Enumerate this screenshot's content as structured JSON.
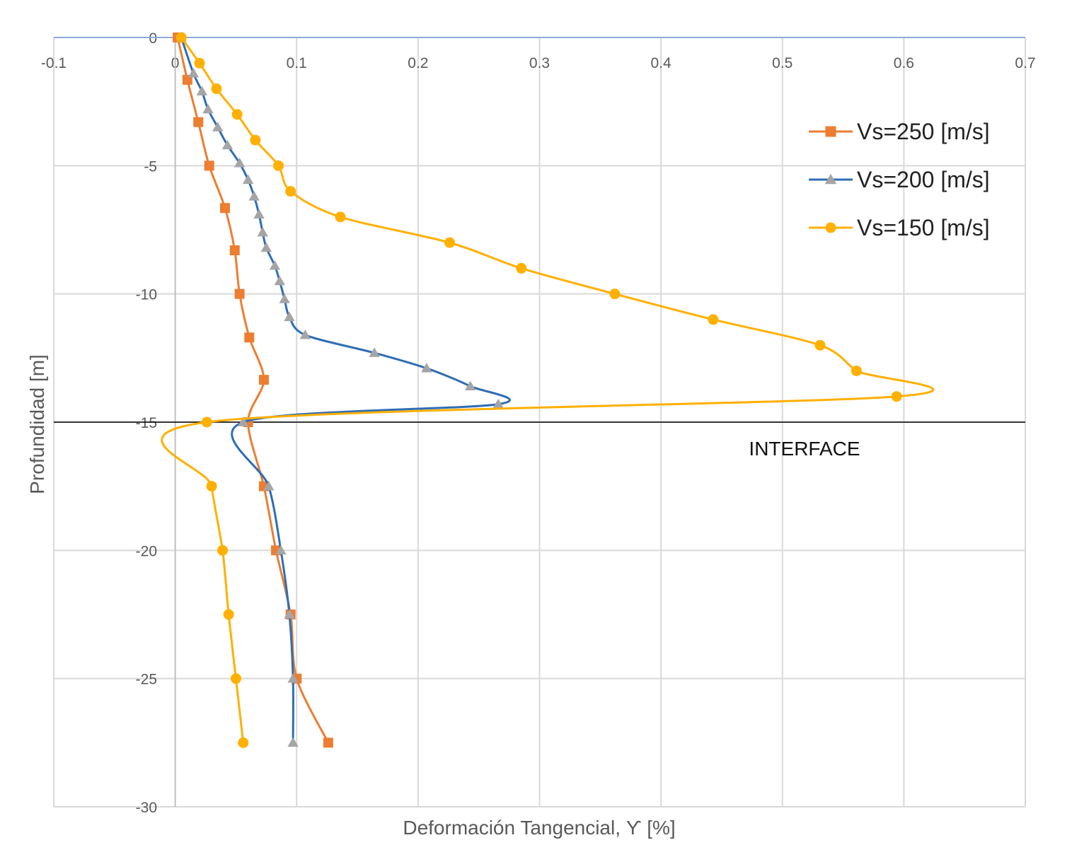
{
  "chart_data": {
    "type": "line",
    "title": "",
    "xlabel": "Deformación Tangencial, ϒ [%]",
    "ylabel": "Profundidad [m]",
    "xlim": [
      -0.1,
      0.7
    ],
    "ylim": [
      -30,
      0
    ],
    "x_ticks": [
      -0.1,
      0,
      0.1,
      0.2,
      0.3,
      0.4,
      0.5,
      0.6,
      0.7
    ],
    "y_ticks": [
      0,
      -5,
      -10,
      -15,
      -20,
      -25,
      -30
    ],
    "x_tick_labels": [
      "-0.1",
      "0",
      "0.1",
      "0.2",
      "0.3",
      "0.4",
      "0.5",
      "0.6",
      "0.7"
    ],
    "y_tick_labels": [
      "0",
      "-5",
      "-10",
      "-15",
      "-20",
      "-25",
      "-30"
    ],
    "x_axis_position": "top",
    "grid": true,
    "legend_position": "top-right",
    "reference_line": {
      "y": -15,
      "label": "INTERFACE",
      "color": "#000000"
    },
    "series": [
      {
        "name": "Vs=250 [m/s]",
        "color": "#ED7D31",
        "marker": "square",
        "points": [
          [
            0.002,
            0
          ],
          [
            0.01,
            -1.65
          ],
          [
            0.019,
            -3.3
          ],
          [
            0.028,
            -5
          ],
          [
            0.041,
            -6.65
          ],
          [
            0.049,
            -8.3
          ],
          [
            0.053,
            -10
          ],
          [
            0.061,
            -11.7
          ],
          [
            0.073,
            -13.35
          ],
          [
            0.06,
            -15
          ],
          [
            0.073,
            -17.5
          ],
          [
            0.083,
            -20
          ],
          [
            0.095,
            -22.5
          ],
          [
            0.1,
            -25
          ],
          [
            0.126,
            -27.5
          ]
        ]
      },
      {
        "name": "Vs=200 [m/s]",
        "color": "#2E6DB4",
        "marker_color": "#A5A5A5",
        "marker": "triangle",
        "points": [
          [
            0.005,
            0
          ],
          [
            0.015,
            -1.4
          ],
          [
            0.022,
            -2.1
          ],
          [
            0.027,
            -2.8
          ],
          [
            0.035,
            -3.5
          ],
          [
            0.043,
            -4.2
          ],
          [
            0.053,
            -4.9
          ],
          [
            0.06,
            -5.55
          ],
          [
            0.065,
            -6.2
          ],
          [
            0.069,
            -6.9
          ],
          [
            0.072,
            -7.6
          ],
          [
            0.075,
            -8.2
          ],
          [
            0.082,
            -8.9
          ],
          [
            0.086,
            -9.5
          ],
          [
            0.09,
            -10.2
          ],
          [
            0.094,
            -10.9
          ],
          [
            0.107,
            -11.6
          ],
          [
            0.164,
            -12.3
          ],
          [
            0.207,
            -12.9
          ],
          [
            0.243,
            -13.6
          ],
          [
            0.266,
            -14.3
          ],
          [
            0.056,
            -15
          ],
          [
            0.077,
            -17.5
          ],
          [
            0.087,
            -20
          ],
          [
            0.094,
            -22.5
          ],
          [
            0.097,
            -25
          ],
          [
            0.097,
            -27.5
          ]
        ]
      },
      {
        "name": "Vs=150 [m/s]",
        "color": "#FFB000",
        "marker": "circle",
        "points": [
          [
            0.005,
            0
          ],
          [
            0.02,
            -1
          ],
          [
            0.034,
            -2
          ],
          [
            0.051,
            -3
          ],
          [
            0.066,
            -4
          ],
          [
            0.085,
            -5
          ],
          [
            0.095,
            -6
          ],
          [
            0.136,
            -7
          ],
          [
            0.226,
            -8
          ],
          [
            0.285,
            -9
          ],
          [
            0.362,
            -10
          ],
          [
            0.443,
            -11
          ],
          [
            0.531,
            -12
          ],
          [
            0.561,
            -13
          ],
          [
            0.594,
            -14
          ],
          [
            0.026,
            -15
          ],
          [
            0.03,
            -17.5
          ],
          [
            0.039,
            -20
          ],
          [
            0.044,
            -22.5
          ],
          [
            0.05,
            -25
          ],
          [
            0.056,
            -27.5
          ]
        ]
      }
    ]
  }
}
